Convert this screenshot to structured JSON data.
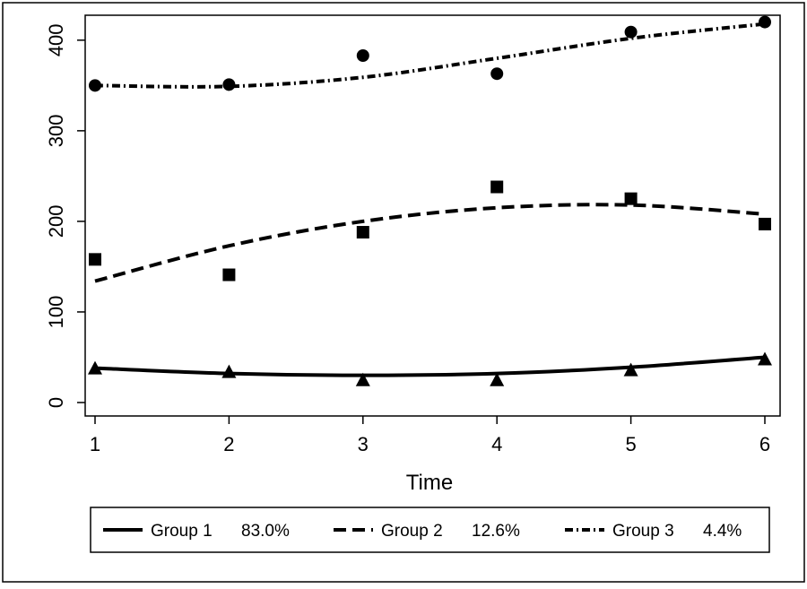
{
  "chart_data": {
    "type": "line",
    "title": "",
    "xlabel": "Time",
    "ylabel": "",
    "x": [
      1,
      2,
      3,
      4,
      5,
      6
    ],
    "xlim": [
      1,
      6
    ],
    "ylim": [
      0,
      430
    ],
    "x_ticks": [
      "1",
      "2",
      "3",
      "4",
      "5",
      "6"
    ],
    "y_ticks": [
      "0",
      "100",
      "200",
      "300",
      "400"
    ],
    "y_tick_values": [
      0,
      100,
      200,
      300,
      400
    ],
    "grid": false,
    "legend_position": "bottom",
    "series": [
      {
        "name": "Group 1",
        "share": "83.0%",
        "line_style": "solid",
        "marker": "triangle",
        "observed": [
          38,
          34,
          25,
          25,
          36,
          48
        ],
        "fitted": [
          38,
          32,
          30,
          32,
          39,
          50
        ]
      },
      {
        "name": "Group 2",
        "share": "12.6%",
        "line_style": "dashed",
        "marker": "square",
        "observed": [
          158,
          141,
          188,
          238,
          225,
          197
        ],
        "fitted": [
          134,
          173,
          200,
          215,
          218,
          208
        ]
      },
      {
        "name": "Group 3",
        "share": "4.4%",
        "line_style": "dash-dot",
        "marker": "circle",
        "observed": [
          350,
          351,
          383,
          363,
          409,
          420
        ],
        "fitted": [
          350,
          349,
          359,
          380,
          402,
          418
        ]
      }
    ]
  }
}
